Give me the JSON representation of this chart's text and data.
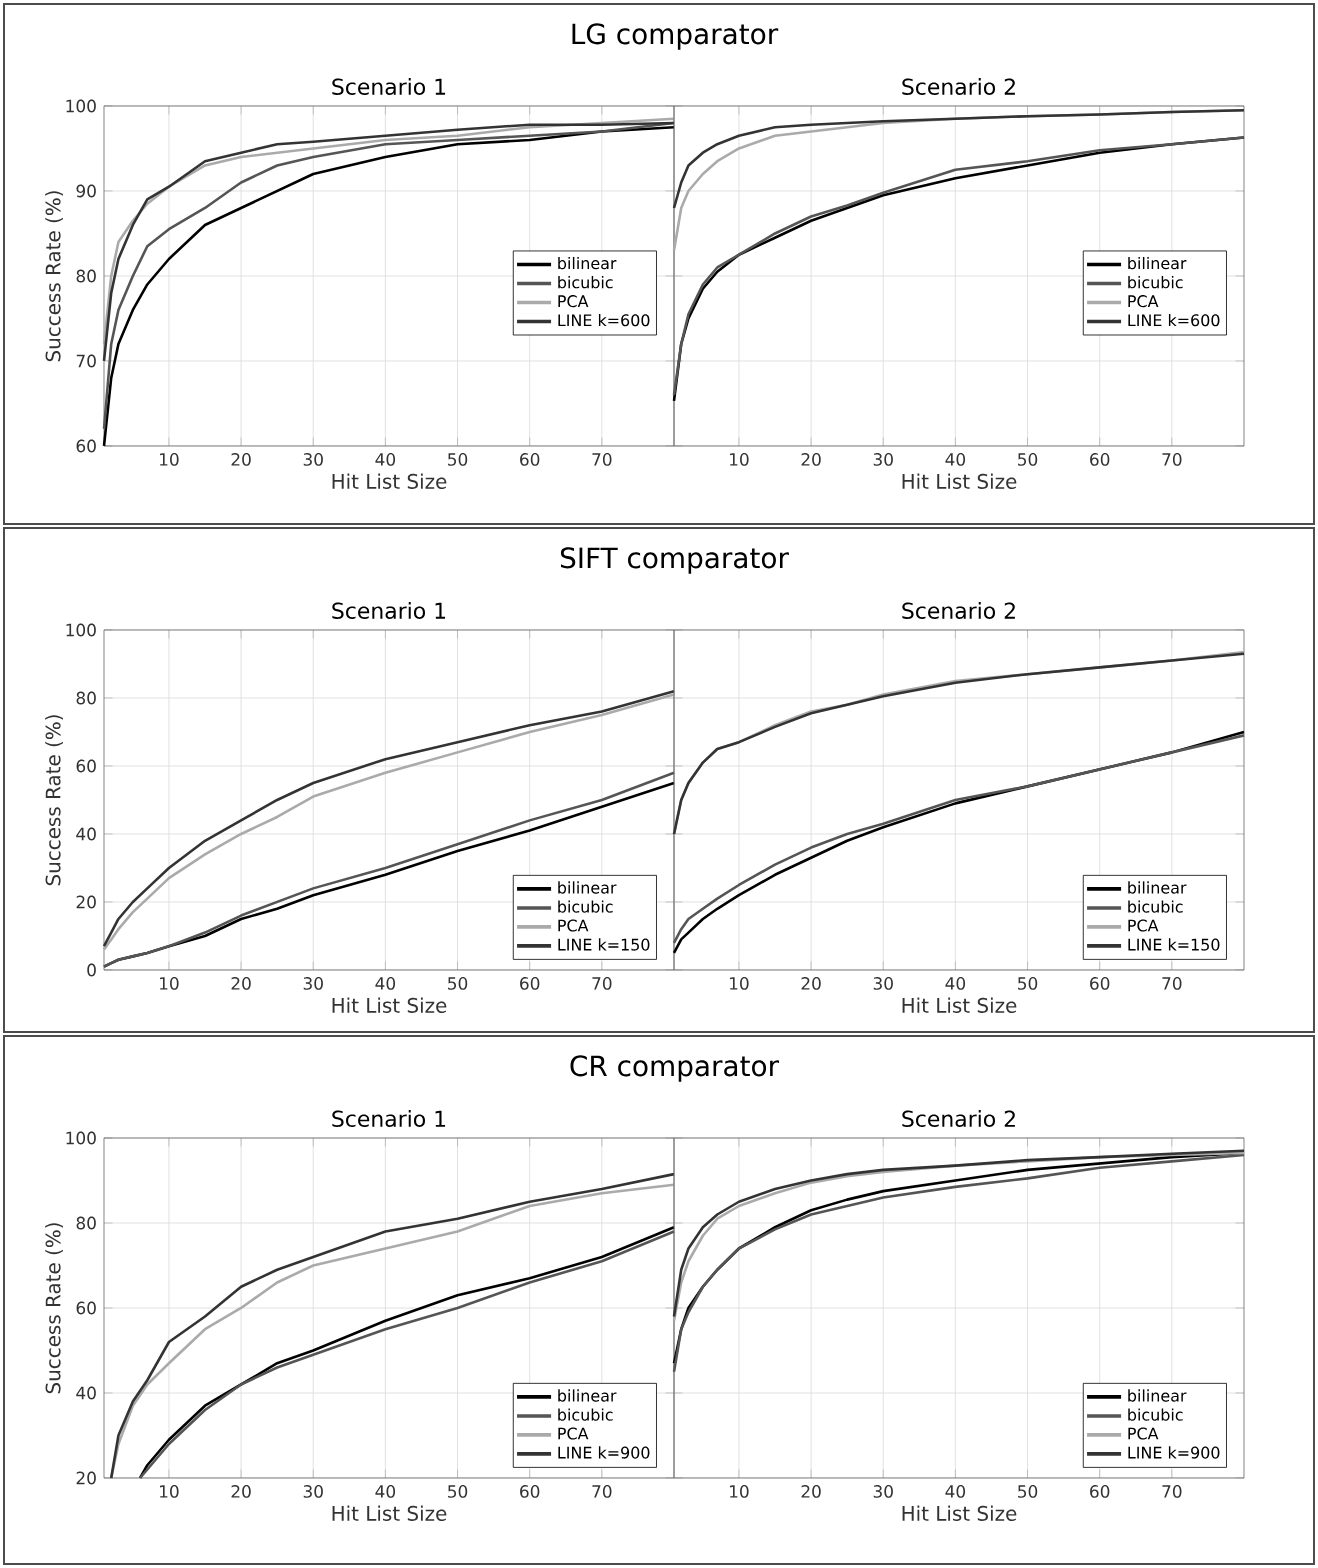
{
  "chart_data": [
    {
      "type": "line",
      "title": "Scenario 1",
      "annotations": [
        "LG comparator"
      ],
      "xlabel": "Hit List Size",
      "ylabel": "Success Rate (%)",
      "xlim": [
        1,
        80
      ],
      "xticks": [
        10,
        20,
        30,
        40,
        50,
        60,
        70
      ],
      "ylim": [
        60,
        100
      ],
      "yticks": [
        60,
        70,
        80,
        90,
        100
      ],
      "grid": true,
      "legend": "right",
      "x": [
        1,
        2,
        3,
        5,
        7,
        10,
        15,
        20,
        25,
        30,
        40,
        50,
        60,
        70,
        80
      ],
      "series": [
        {
          "name": "bilinear",
          "color": "#000000",
          "values": [
            60,
            68,
            72,
            76,
            79,
            82,
            86,
            88,
            90,
            92,
            94,
            95.5,
            96,
            97,
            97.5
          ]
        },
        {
          "name": "bicubic",
          "color": "#555555",
          "values": [
            62,
            72,
            76,
            80,
            83.5,
            85.5,
            88,
            91,
            93,
            94,
            95.5,
            96,
            96.5,
            97,
            98
          ]
        },
        {
          "name": "PCA",
          "color": "#aaaaaa",
          "values": [
            72,
            80,
            84,
            86.5,
            88.5,
            90.5,
            93,
            94,
            94.5,
            95,
            96,
            96.5,
            97.5,
            98,
            98.5
          ]
        },
        {
          "name": "LINE k=600",
          "color": "#333333",
          "values": [
            70,
            78,
            82,
            86,
            89,
            90.5,
            93.5,
            94.5,
            95.5,
            95.8,
            96.5,
            97.2,
            97.8,
            97.8,
            98
          ]
        }
      ]
    },
    {
      "type": "line",
      "title": "Scenario 2",
      "xlabel": "Hit List Size",
      "xlim": [
        1,
        80
      ],
      "xticks": [
        10,
        20,
        30,
        40,
        50,
        60,
        70
      ],
      "ylim": [
        60,
        100
      ],
      "yticks": [
        60,
        70,
        80,
        90,
        100
      ],
      "grid": true,
      "legend": "right",
      "tick_labels": "x",
      "x": [
        1,
        2,
        3,
        5,
        7,
        10,
        15,
        20,
        25,
        30,
        40,
        50,
        60,
        70,
        80
      ],
      "series": [
        {
          "name": "bilinear",
          "color": "#000000",
          "values": [
            65.3,
            72,
            75,
            78.5,
            80.5,
            82.5,
            84.5,
            86.5,
            88,
            89.5,
            91.5,
            93,
            94.5,
            95.5,
            96.3
          ]
        },
        {
          "name": "bicubic",
          "color": "#555555",
          "values": [
            66,
            72,
            75.5,
            79,
            81,
            82.5,
            85,
            87,
            88.3,
            89.8,
            92.5,
            93.5,
            94.8,
            95.5,
            96.3
          ]
        },
        {
          "name": "PCA",
          "color": "#aaaaaa",
          "values": [
            83,
            88,
            90,
            92,
            93.5,
            95,
            96.5,
            97,
            97.5,
            98,
            98.5,
            98.8,
            99,
            99.3,
            99.5
          ]
        },
        {
          "name": "LINE k=600",
          "color": "#333333",
          "values": [
            88,
            91,
            93,
            94.5,
            95.5,
            96.5,
            97.5,
            97.8,
            98,
            98.2,
            98.5,
            98.8,
            99,
            99.3,
            99.5
          ]
        }
      ]
    },
    {
      "type": "line",
      "title": "Scenario 1",
      "annotations": [
        "SIFT comparator"
      ],
      "xlabel": "Hit List Size",
      "ylabel": "Success Rate (%)",
      "xlim": [
        1,
        80
      ],
      "xticks": [
        10,
        20,
        30,
        40,
        50,
        60,
        70
      ],
      "ylim": [
        0,
        100
      ],
      "yticks": [
        0,
        20,
        40,
        60,
        80,
        100
      ],
      "grid": true,
      "legend": "bottom right",
      "x": [
        1,
        2,
        3,
        5,
        7,
        10,
        15,
        20,
        25,
        30,
        40,
        50,
        60,
        70,
        80
      ],
      "series": [
        {
          "name": "bilinear",
          "color": "#000000",
          "values": [
            1,
            2,
            3,
            4,
            5,
            7,
            10,
            15,
            18,
            22,
            28,
            35,
            41,
            48,
            55
          ]
        },
        {
          "name": "bicubic",
          "color": "#555555",
          "values": [
            1,
            2,
            3,
            4,
            5,
            7,
            11,
            16,
            20,
            24,
            30,
            37,
            44,
            50,
            58
          ]
        },
        {
          "name": "PCA",
          "color": "#aaaaaa",
          "values": [
            6,
            9,
            12,
            17,
            21,
            27,
            34,
            40,
            45,
            51,
            58,
            64,
            70,
            75,
            81
          ]
        },
        {
          "name": "LINE k=150",
          "color": "#333333",
          "values": [
            7,
            11,
            15,
            20,
            24,
            30,
            38,
            44,
            50,
            55,
            62,
            67,
            72,
            76,
            82
          ]
        }
      ]
    },
    {
      "type": "line",
      "title": "Scenario 2",
      "xlabel": "Hit List Size",
      "xlim": [
        1,
        80
      ],
      "xticks": [
        10,
        20,
        30,
        40,
        50,
        60,
        70
      ],
      "ylim": [
        0,
        100
      ],
      "yticks": [
        0,
        20,
        40,
        60,
        80,
        100
      ],
      "grid": true,
      "legend": "bottom right",
      "tick_labels": "x",
      "x": [
        1,
        2,
        3,
        5,
        7,
        10,
        15,
        20,
        25,
        30,
        40,
        50,
        60,
        70,
        80
      ],
      "series": [
        {
          "name": "bilinear",
          "color": "#000000",
          "values": [
            5,
            9,
            11,
            15,
            18,
            22,
            28,
            33,
            38,
            42,
            49,
            54,
            59,
            64,
            70
          ]
        },
        {
          "name": "bicubic",
          "color": "#555555",
          "values": [
            8,
            12,
            15,
            18,
            21,
            25,
            31,
            36,
            40,
            43,
            50,
            54,
            59,
            64,
            69
          ]
        },
        {
          "name": "PCA",
          "color": "#aaaaaa",
          "values": [
            40,
            50,
            55,
            61,
            65,
            67,
            72,
            76,
            78,
            81,
            85,
            87,
            89,
            91,
            93.5
          ]
        },
        {
          "name": "LINE k=150",
          "color": "#333333",
          "values": [
            40,
            50,
            55,
            61,
            65,
            67,
            71.5,
            75.5,
            78,
            80.5,
            84.5,
            87,
            89,
            91,
            93
          ]
        }
      ]
    },
    {
      "type": "line",
      "title": "Scenario 1",
      "annotations": [
        "CR comparator"
      ],
      "xlabel": "Hit List Size",
      "ylabel": "Success Rate (%)",
      "xlim": [
        1,
        80
      ],
      "xticks": [
        10,
        20,
        30,
        40,
        50,
        60,
        70
      ],
      "ylim": [
        20,
        100
      ],
      "yticks": [
        20,
        40,
        60,
        80,
        100
      ],
      "grid": true,
      "legend": "bottom right",
      "series": [
        {
          "name": "bilinear",
          "color": "#000000",
          "x": [
            6,
            7,
            10,
            15,
            20,
            25,
            30,
            40,
            50,
            60,
            70,
            80
          ],
          "values": [
            20,
            23,
            29,
            37,
            42,
            47,
            50,
            57,
            63,
            67,
            72,
            79
          ]
        },
        {
          "name": "bicubic",
          "color": "#555555",
          "x": [
            6,
            7,
            10,
            15,
            20,
            25,
            30,
            40,
            50,
            60,
            70,
            80
          ],
          "values": [
            20,
            22,
            28,
            36,
            42,
            46,
            49,
            55,
            60,
            66,
            71,
            78
          ]
        },
        {
          "name": "PCA",
          "color": "#aaaaaa",
          "x": [
            2,
            3,
            5,
            7,
            10,
            15,
            20,
            25,
            30,
            40,
            50,
            60,
            70,
            80
          ],
          "values": [
            20,
            28,
            37,
            42,
            47,
            55,
            60,
            66,
            70,
            74,
            78,
            84,
            87,
            89
          ]
        },
        {
          "name": "LINE k=900",
          "color": "#333333",
          "x": [
            2,
            3,
            5,
            7,
            10,
            15,
            20,
            25,
            30,
            40,
            50,
            60,
            70,
            80
          ],
          "values": [
            20,
            30,
            38,
            43,
            52,
            58,
            65,
            69,
            72,
            78,
            81,
            85,
            88,
            91.5
          ]
        }
      ]
    },
    {
      "type": "line",
      "title": "Scenario 2",
      "xlabel": "Hit List Size",
      "xlim": [
        1,
        80
      ],
      "xticks": [
        10,
        20,
        30,
        40,
        50,
        60,
        70
      ],
      "ylim": [
        20,
        100
      ],
      "yticks": [
        20,
        40,
        60,
        80,
        100
      ],
      "grid": true,
      "legend": "bottom right",
      "tick_labels": "x",
      "x": [
        1,
        2,
        3,
        5,
        7,
        10,
        15,
        20,
        25,
        30,
        40,
        50,
        60,
        70,
        80
      ],
      "series": [
        {
          "name": "bilinear",
          "color": "#000000",
          "values": [
            47,
            55,
            60,
            65,
            69,
            74,
            79,
            83,
            85.5,
            87.5,
            90,
            92.5,
            94,
            95.5,
            96.5
          ]
        },
        {
          "name": "bicubic",
          "color": "#555555",
          "values": [
            45,
            55,
            59,
            65,
            69,
            74,
            78.5,
            82,
            84,
            86,
            88.5,
            90.5,
            93,
            94.5,
            96
          ]
        },
        {
          "name": "PCA",
          "color": "#aaaaaa",
          "values": [
            57,
            66,
            71,
            77,
            81,
            84,
            87,
            89.5,
            91,
            92,
            93.5,
            94.5,
            95.5,
            96,
            96.5
          ]
        },
        {
          "name": "LINE k=900",
          "color": "#333333",
          "values": [
            58,
            69,
            74,
            79,
            82,
            85,
            88,
            90,
            91.5,
            92.5,
            93.5,
            94.8,
            95.5,
            96.3,
            97
          ]
        }
      ]
    }
  ]
}
